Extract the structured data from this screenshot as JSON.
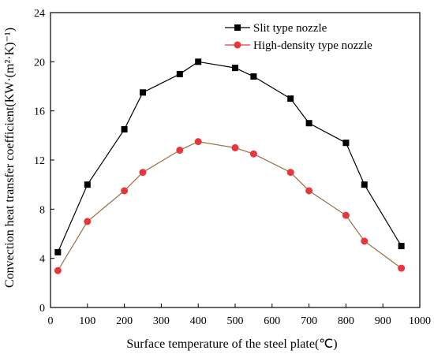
{
  "chart_data": {
    "type": "line",
    "title": "",
    "xlabel": "Surface temperature of the steel plate(℃)",
    "ylabel": "Convection heat transfer coefficient(KW·(m²·K)⁻¹)",
    "xlim": [
      0,
      1000
    ],
    "ylim": [
      0,
      24
    ],
    "xticks": [
      0,
      100,
      200,
      300,
      400,
      500,
      600,
      700,
      800,
      900,
      1000
    ],
    "yticks": [
      0,
      4,
      8,
      12,
      16,
      20,
      24
    ],
    "grid": false,
    "legend_position": "top-right",
    "series": [
      {
        "name": "Slit type nozzle",
        "marker": "square",
        "color": "#000000",
        "line_color": "#000000",
        "x": [
          20,
          100,
          200,
          250,
          350,
          400,
          500,
          550,
          650,
          700,
          800,
          850,
          950
        ],
        "y": [
          4.5,
          10.0,
          14.5,
          17.5,
          19.0,
          20.0,
          19.5,
          18.8,
          17.0,
          15.0,
          13.4,
          10.0,
          5.0
        ]
      },
      {
        "name": "High-density type nozzle",
        "marker": "circle",
        "color": "#e8373c",
        "line_color": "#9b6a3e",
        "x": [
          20,
          100,
          200,
          250,
          350,
          400,
          500,
          550,
          650,
          700,
          800,
          850,
          950
        ],
        "y": [
          3.0,
          7.0,
          9.5,
          11.0,
          12.8,
          13.5,
          13.0,
          12.5,
          11.0,
          9.5,
          7.5,
          5.4,
          3.2
        ]
      }
    ]
  }
}
